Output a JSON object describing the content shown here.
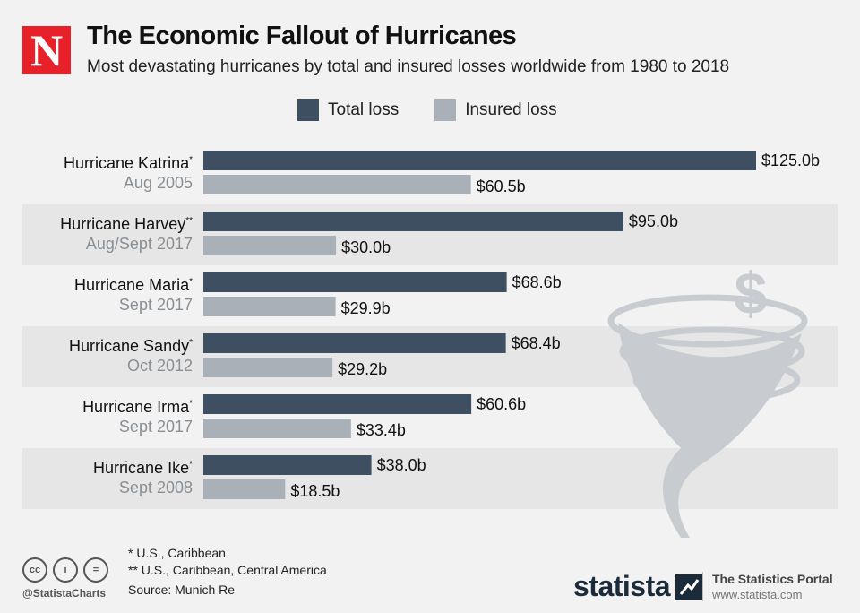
{
  "header": {
    "logo": "N",
    "title": "The Economic Fallout of Hurricanes",
    "subtitle": "Most devastating hurricanes by total and insured losses worldwide from 1980 to 2018"
  },
  "colors": {
    "total": "#3d4f60",
    "insured": "#a9b0b7",
    "band": "#e6e6e6",
    "tornado": "#c8ccd0"
  },
  "chart_data": {
    "type": "bar",
    "orientation": "horizontal",
    "categories": [
      "Hurricane Katrina",
      "Hurricane Harvey",
      "Hurricane Maria",
      "Hurricane Sandy",
      "Hurricane Irma",
      "Hurricane Ike"
    ],
    "markers": [
      "*",
      "**",
      "*",
      "*",
      "*",
      "*"
    ],
    "dates": [
      "Aug 2005",
      "Aug/Sept 2017",
      "Sept 2017",
      "Oct 2012",
      "Sept 2017",
      "Sept 2008"
    ],
    "series": [
      {
        "name": "Total loss",
        "values": [
          125.0,
          95.0,
          68.6,
          68.4,
          60.6,
          38.0
        ],
        "labels": [
          "$125.0b",
          "$95.0b",
          "$68.6b",
          "$68.4b",
          "$60.6b",
          "$38.0b"
        ]
      },
      {
        "name": "Insured loss",
        "values": [
          60.5,
          30.0,
          29.9,
          29.2,
          33.4,
          18.5
        ],
        "labels": [
          "$60.5b",
          "$30.0b",
          "$29.9b",
          "$29.2b",
          "$33.4b",
          "$18.5b"
        ]
      }
    ],
    "unit": "billion U.S. dollars",
    "xlim": [
      0,
      125
    ],
    "legend": [
      "Total loss",
      "Insured loss"
    ],
    "legend_position": "top"
  },
  "footer": {
    "note1": "*  U.S., Caribbean",
    "note2": "** U.S., Caribbean, Central America",
    "source": "Source: Munich Re",
    "cc": [
      "cc",
      "i",
      "="
    ],
    "handle": "@StatistaCharts",
    "brand": "statista",
    "portal_title": "The Statistics Portal",
    "portal_url": "www.statista.com"
  }
}
